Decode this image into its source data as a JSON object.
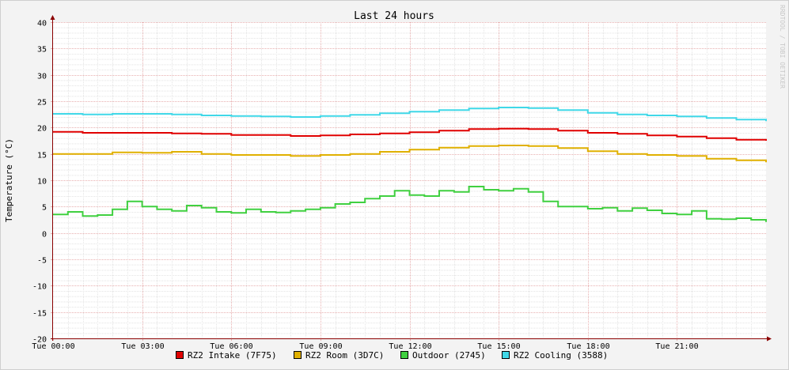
{
  "chart_data": {
    "type": "line",
    "title": "Last 24 hours",
    "ylabel": "Temperature (°C)",
    "xlabel": "",
    "watermark": "RRDTOOL / TOBI OETIKER",
    "ylim": [
      -20,
      40
    ],
    "yticks": [
      -20,
      -15,
      -10,
      -5,
      0,
      5,
      10,
      15,
      20,
      25,
      30,
      35,
      40
    ],
    "xlim_hours": [
      0,
      24
    ],
    "xticks": [
      {
        "hour": 0,
        "label": "Tue 00:00"
      },
      {
        "hour": 3,
        "label": "Tue 03:00"
      },
      {
        "hour": 6,
        "label": "Tue 06:00"
      },
      {
        "hour": 9,
        "label": "Tue 09:00"
      },
      {
        "hour": 12,
        "label": "Tue 12:00"
      },
      {
        "hour": 15,
        "label": "Tue 15:00"
      },
      {
        "hour": 18,
        "label": "Tue 18:00"
      },
      {
        "hour": 21,
        "label": "Tue 21:00"
      }
    ],
    "grid": true,
    "legend_position": "bottom",
    "series": [
      {
        "name": "RZ2 Intake (7F75)",
        "color": "#e00000",
        "x": [
          0,
          1,
          2,
          3,
          4,
          5,
          6,
          7,
          8,
          9,
          10,
          11,
          12,
          13,
          14,
          15,
          16,
          17,
          18,
          19,
          20,
          21,
          22,
          23,
          24
        ],
        "y": [
          19.2,
          19.0,
          19.0,
          19.0,
          18.9,
          18.8,
          18.6,
          18.6,
          18.4,
          18.5,
          18.7,
          18.9,
          19.1,
          19.4,
          19.7,
          19.8,
          19.7,
          19.4,
          19.0,
          18.8,
          18.5,
          18.3,
          18.0,
          17.7,
          17.5
        ]
      },
      {
        "name": "RZ2 Room (3D7C)",
        "color": "#e0b000",
        "x": [
          0,
          1,
          2,
          3,
          4,
          5,
          6,
          7,
          8,
          9,
          10,
          11,
          12,
          13,
          14,
          15,
          16,
          17,
          18,
          19,
          20,
          21,
          22,
          23,
          24
        ],
        "y": [
          15.0,
          15.0,
          15.3,
          15.2,
          15.4,
          15.0,
          14.8,
          14.8,
          14.6,
          14.8,
          15.0,
          15.4,
          15.8,
          16.2,
          16.5,
          16.6,
          16.5,
          16.1,
          15.5,
          15.0,
          14.8,
          14.6,
          14.1,
          13.8,
          13.4
        ]
      },
      {
        "name": "Outdoor (2745)",
        "color": "#40d040",
        "x": [
          0,
          0.5,
          1,
          1.5,
          2,
          2.5,
          3,
          3.5,
          4,
          4.5,
          5,
          5.5,
          6,
          6.5,
          7,
          7.5,
          8,
          8.5,
          9,
          9.5,
          10,
          10.5,
          11,
          11.5,
          12,
          12.5,
          13,
          13.5,
          14,
          14.5,
          15,
          15.5,
          16,
          16.5,
          17,
          17.5,
          18,
          18.5,
          19,
          19.5,
          20,
          20.5,
          21,
          21.5,
          22,
          22.5,
          23,
          23.5,
          24
        ],
        "y": [
          3.5,
          4.0,
          3.2,
          3.4,
          4.5,
          6.0,
          5.0,
          4.5,
          4.2,
          5.2,
          4.8,
          4.0,
          3.8,
          4.5,
          4.0,
          3.9,
          4.2,
          4.5,
          4.8,
          5.5,
          5.8,
          6.5,
          7.0,
          8.0,
          7.2,
          7.0,
          8.0,
          7.8,
          8.8,
          8.2,
          8.0,
          8.4,
          7.8,
          6.0,
          5.0,
          5.0,
          4.6,
          4.8,
          4.2,
          4.7,
          4.3,
          3.7,
          3.5,
          4.2,
          2.7,
          2.6,
          2.8,
          2.5,
          2.1
        ]
      },
      {
        "name": "RZ2 Cooling (3588)",
        "color": "#40d8e8",
        "x": [
          0,
          1,
          2,
          3,
          4,
          5,
          6,
          7,
          8,
          9,
          10,
          11,
          12,
          13,
          14,
          15,
          16,
          17,
          18,
          19,
          20,
          21,
          22,
          23,
          24
        ],
        "y": [
          22.6,
          22.5,
          22.6,
          22.6,
          22.5,
          22.3,
          22.2,
          22.1,
          22.0,
          22.2,
          22.4,
          22.7,
          23.0,
          23.3,
          23.6,
          23.8,
          23.7,
          23.3,
          22.8,
          22.5,
          22.3,
          22.1,
          21.8,
          21.5,
          21.2
        ]
      }
    ]
  }
}
